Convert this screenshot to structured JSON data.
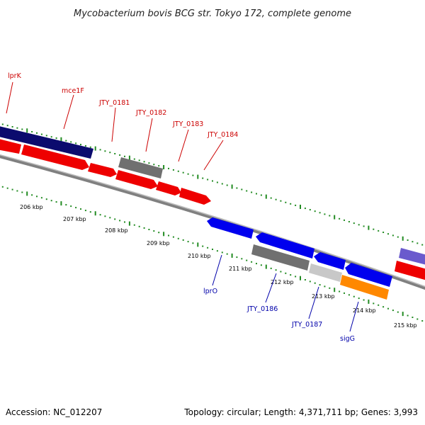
{
  "title": "Mycobacterium bovis BCG str. Tokyo 172, complete genome",
  "footer": {
    "accession": "Accession: NC_012207",
    "topology": "Topology: circular; Length: 4,371,711 bp; Genes: 3,993"
  },
  "colors": {
    "title": "#222222",
    "top_label": "#cc0000",
    "bottom_label": "#0000aa",
    "ticks": "#228b22",
    "backbone": "#808080",
    "navy": "#0b0b6e",
    "red": "#ee0000",
    "blue": "#0000ee",
    "gray": "#707070",
    "lightgray": "#c8c8c8",
    "orange": "#ff8800",
    "violet": "#6a5acd"
  },
  "tick_labels": [
    "206 kbp",
    "207 kbp",
    "208 kbp",
    "209 kbp",
    "210 kbp",
    "211 kbp",
    "212 kbp",
    "213 kbp",
    "214 kbp",
    "215 kbp"
  ],
  "top_labels": [
    "lprK",
    "mce1F",
    "JTY_0181",
    "JTY_0182",
    "JTY_0183",
    "JTY_0184"
  ],
  "bottom_labels": [
    "lprO",
    "JTY_0186",
    "JTY_0187",
    "sigG"
  ]
}
